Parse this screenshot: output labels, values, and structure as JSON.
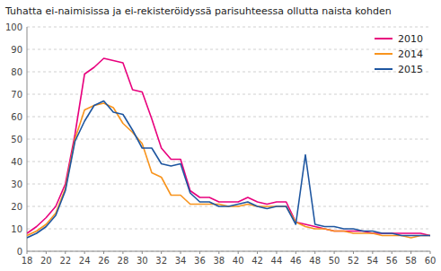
{
  "chart_data": {
    "type": "line",
    "title": "Tuhatta ei-naimisissa ja ei-rekisteröidyssä parisuhteessa ollutta naista kohden",
    "x": [
      18,
      19,
      20,
      21,
      22,
      23,
      24,
      25,
      26,
      27,
      28,
      29,
      30,
      31,
      32,
      33,
      34,
      35,
      36,
      37,
      38,
      39,
      40,
      41,
      42,
      43,
      44,
      45,
      46,
      47,
      48,
      49,
      50,
      51,
      52,
      53,
      54,
      55,
      56,
      57,
      58,
      59,
      60
    ],
    "series": [
      {
        "name": "2010",
        "color": "#e8007d",
        "values": [
          8,
          11,
          15,
          20,
          30,
          52,
          79,
          82,
          86,
          85,
          84,
          72,
          71,
          59,
          46,
          41,
          41,
          27,
          24,
          24,
          22,
          22,
          22,
          24,
          22,
          21,
          22,
          22,
          13,
          12,
          11,
          10,
          9,
          9,
          9,
          9,
          8,
          8,
          8,
          8,
          8,
          8,
          7
        ]
      },
      {
        "name": "2014",
        "color": "#f8941d",
        "values": [
          7,
          9,
          12,
          17,
          28,
          50,
          63,
          65,
          66,
          64,
          57,
          53,
          48,
          35,
          33,
          25,
          25,
          21,
          21,
          21,
          21,
          20,
          20,
          21,
          20,
          20,
          20,
          20,
          13,
          11,
          10,
          10,
          9,
          9,
          8,
          8,
          8,
          7,
          7,
          7,
          6,
          7,
          7
        ]
      },
      {
        "name": "2015",
        "color": "#1e56a0",
        "values": [
          6,
          8,
          11,
          16,
          27,
          49,
          58,
          65,
          67,
          62,
          61,
          54,
          46,
          46,
          39,
          38,
          39,
          26,
          22,
          22,
          20,
          20,
          21,
          22,
          20,
          19,
          20,
          20,
          12,
          43,
          12,
          11,
          11,
          10,
          10,
          9,
          9,
          8,
          8,
          7,
          7,
          7,
          7
        ]
      }
    ],
    "xlim": [
      18,
      60
    ],
    "ylim": [
      0,
      100
    ],
    "xticks": [
      18,
      20,
      22,
      24,
      26,
      28,
      30,
      32,
      34,
      36,
      38,
      40,
      42,
      44,
      46,
      48,
      50,
      52,
      54,
      56,
      58,
      60
    ],
    "yticks": [
      0,
      10,
      20,
      30,
      40,
      50,
      60,
      70,
      80,
      90,
      100
    ],
    "grid": true,
    "legend": "upper right"
  }
}
